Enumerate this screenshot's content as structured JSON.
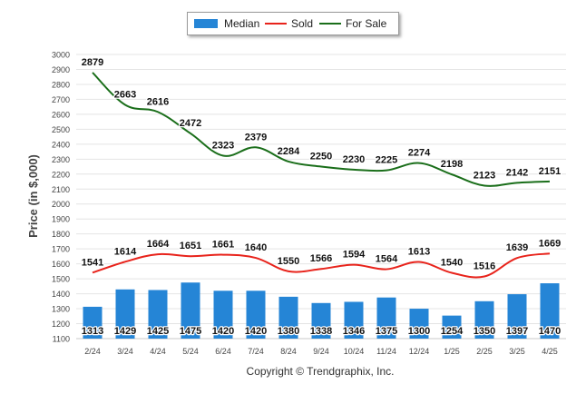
{
  "copyright": "Copyright © Trendgraphix, Inc.",
  "colors": {
    "median": "#2585d6",
    "sold": "#e8231b",
    "for_sale": "#1a6e1a",
    "grid": "#e4e4e4",
    "axis_text": "#444444"
  },
  "chart_data": {
    "type": "bar",
    "title": "",
    "xlabel": "",
    "ylabel": "Price (in $,000)",
    "ylim": [
      1100,
      3000
    ],
    "yticks": [
      1100,
      1200,
      1300,
      1400,
      1500,
      1600,
      1700,
      1800,
      1900,
      2000,
      2100,
      2200,
      2300,
      2400,
      2500,
      2600,
      2700,
      2800,
      2900,
      3000
    ],
    "grid": true,
    "legend_position": "top-center",
    "categories": [
      "2/24",
      "3/24",
      "4/24",
      "5/24",
      "6/24",
      "7/24",
      "8/24",
      "9/24",
      "10/24",
      "11/24",
      "12/24",
      "1/25",
      "2/25",
      "3/25",
      "4/25"
    ],
    "series": [
      {
        "name": "Median",
        "type": "bar",
        "values": [
          1313,
          1429,
          1425,
          1475,
          1420,
          1420,
          1380,
          1338,
          1346,
          1375,
          1300,
          1254,
          1350,
          1397,
          1470
        ]
      },
      {
        "name": "Sold",
        "type": "line",
        "values": [
          1541,
          1614,
          1664,
          1651,
          1661,
          1640,
          1550,
          1566,
          1594,
          1564,
          1613,
          1540,
          1516,
          1639,
          1669
        ]
      },
      {
        "name": "For Sale",
        "type": "line",
        "values": [
          2879,
          2663,
          2616,
          2472,
          2323,
          2379,
          2284,
          2250,
          2230,
          2225,
          2274,
          2198,
          2123,
          2142,
          2151
        ]
      }
    ]
  }
}
